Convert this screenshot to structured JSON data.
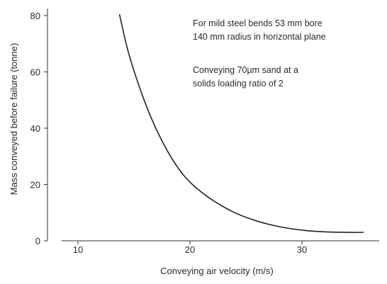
{
  "chart_data": {
    "type": "line",
    "xlabel": "Conveying air velocity (m/s)",
    "ylabel": "Mass conveyed before failure (tonne)",
    "xlim": [
      7,
      37
    ],
    "ylim": [
      0,
      84
    ],
    "xticks": [
      10,
      20,
      30
    ],
    "yticks": [
      0,
      20,
      40,
      60,
      80
    ],
    "grid": false,
    "annotations": [
      "For mild steel bends 53 mm bore",
      "140 mm radius in horizontal plane",
      "Conveying 70µm sand at a",
      "solids loading ratio of 2"
    ],
    "series": [
      {
        "x": [
          13.7,
          14.5,
          15.5,
          16.5,
          17.5,
          18.5,
          19.5,
          20.5,
          22,
          24,
          26,
          28,
          30,
          32,
          34,
          35.5
        ],
        "y": [
          80.5,
          67,
          54.5,
          44,
          35.5,
          28.5,
          23,
          19,
          14.5,
          10,
          7,
          5,
          3.8,
          3.2,
          3,
          3
        ]
      }
    ],
    "colors": {
      "line": "#222222",
      "axis": "#333333",
      "text": "#2a2a2a"
    }
  }
}
